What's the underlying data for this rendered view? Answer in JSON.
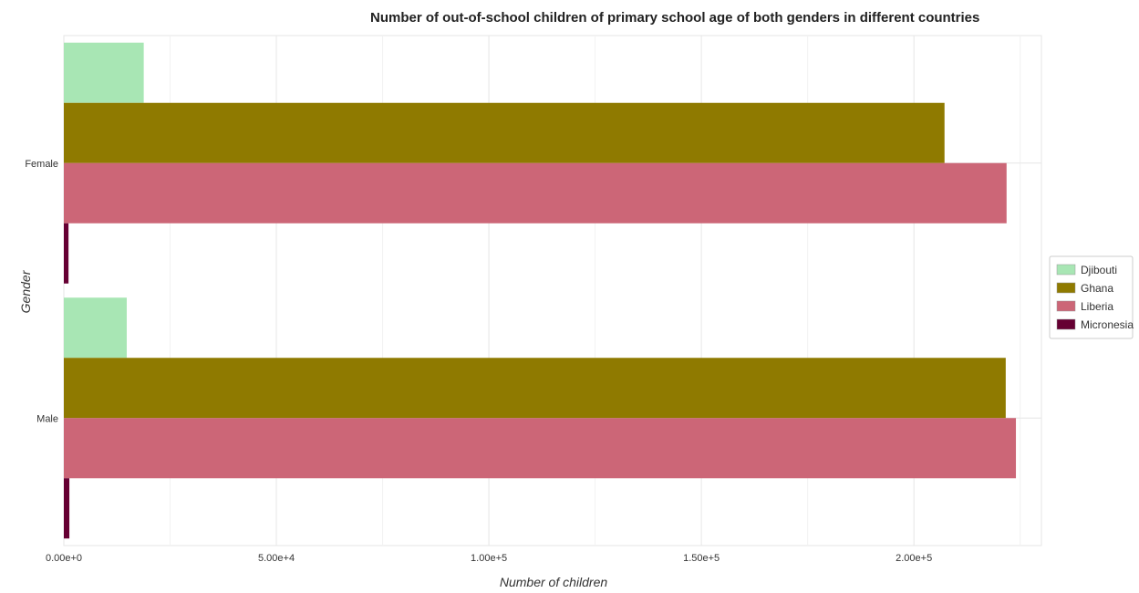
{
  "chart_data": {
    "type": "bar",
    "orientation": "horizontal",
    "title": "Number of out-of-school children of primary school age of both genders in different countries",
    "xlabel": "Number of children",
    "ylabel": "Gender",
    "categories": [
      "Female",
      "Male"
    ],
    "series": [
      {
        "name": "Djibouti",
        "color": "#a8e6b4",
        "values": [
          18800,
          14800
        ]
      },
      {
        "name": "Ghana",
        "color": "#8f7a00",
        "values": [
          207200,
          221600
        ]
      },
      {
        "name": "Liberia",
        "color": "#cc6677",
        "values": [
          221800,
          224000
        ]
      },
      {
        "name": "Micronesia",
        "color": "#660033",
        "values": [
          1100,
          1300
        ]
      }
    ],
    "xlim": [
      0,
      230000
    ],
    "xticks": [
      0,
      50000,
      100000,
      150000,
      200000
    ],
    "xtick_labels": [
      "0.00e+0",
      "5.00e+4",
      "1.00e+5",
      "1.50e+5",
      "2.00e+5"
    ],
    "grid": true,
    "legend_position": "right"
  }
}
